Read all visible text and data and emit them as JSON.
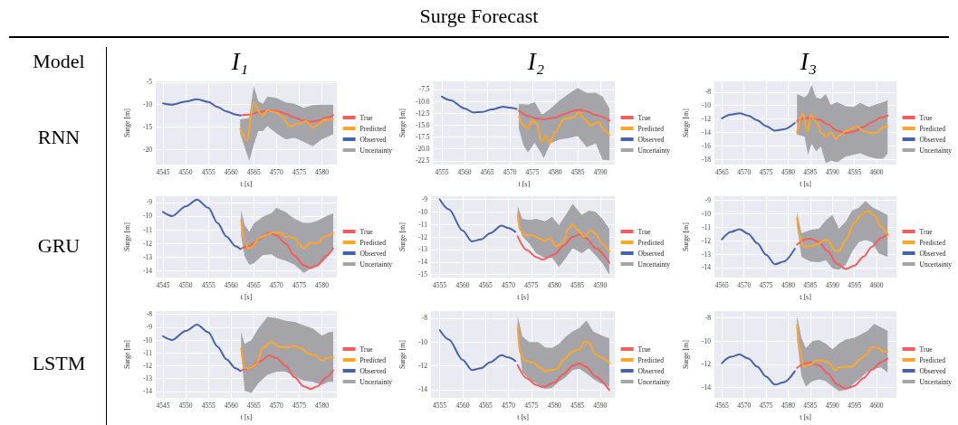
{
  "chart_data": [
    {
      "type": "other",
      "title": "Surge Forecast",
      "annotations": [
        "Model",
        "I₁",
        "I₂",
        "I₃",
        "RNN",
        "GRU",
        "LSTM"
      ]
    },
    {
      "type": "line",
      "xlabel": "t [s]",
      "ylabel": "Surge [m]",
      "grid": true,
      "legend": "right",
      "xlim": [
        4543.4,
        4583.3
      ],
      "ylim": [
        -23.4,
        -4.8
      ],
      "xticks": [
        4545,
        4550,
        4555,
        4560,
        4565,
        4570,
        4575,
        4580
      ],
      "yticks": [
        -20,
        -15,
        -10,
        -5
      ],
      "series": [
        {
          "name": "True",
          "color": "#f55c5c",
          "x": [
            4562,
            4564,
            4566,
            4568.5,
            4570,
            4572,
            4574,
            4576,
            4577.5,
            4579,
            4581,
            4582.5
          ],
          "values": [
            -12.4,
            -12.2,
            -11.7,
            -11.2,
            -11.4,
            -12.0,
            -12.9,
            -13.6,
            -13.8,
            -13.6,
            -12.9,
            -12.35
          ]
        },
        {
          "name": "Predicted",
          "color": "#ffa62b",
          "x": [
            4562,
            4563.5,
            4565,
            4566.5,
            4567,
            4568,
            4570,
            4571,
            4573,
            4575,
            4576.5,
            4578,
            4579,
            4580.5,
            4582.5
          ],
          "values": [
            -15.4,
            -18.0,
            -9.6,
            -12.0,
            -12.5,
            -11.2,
            -11.7,
            -12.6,
            -14.8,
            -14.2,
            -13.7,
            -15.1,
            -14.6,
            -13.4,
            -13.4
          ]
        },
        {
          "name": "Observed",
          "color": "#4563ad",
          "x": [
            4545,
            4547,
            4550,
            4552.5,
            4555,
            4557,
            4559,
            4561,
            4562
          ],
          "values": [
            -9.7,
            -10.0,
            -9.3,
            -8.8,
            -9.4,
            -10.5,
            -11.5,
            -12.2,
            -12.4
          ]
        },
        {
          "name": "Uncertainty",
          "type": "area",
          "color": "#a5a4a9",
          "x": [
            4562,
            4564,
            4565,
            4566,
            4567,
            4568,
            4570,
            4572,
            4574,
            4576,
            4578,
            4580,
            4582.5
          ],
          "values": [
            null,
            null,
            null,
            null,
            null,
            null,
            null,
            null,
            null,
            null,
            null,
            null,
            null
          ],
          "lower": [
            -16.5,
            -22.5,
            -19.0,
            -15.9,
            -15.9,
            -14.8,
            -16.4,
            -17.7,
            -17.4,
            -18.3,
            -19.3,
            -17.7,
            -16.6
          ],
          "upper": [
            -13.3,
            -13.0,
            -5.8,
            -9.2,
            -9.8,
            -8.2,
            -8.5,
            -9.5,
            -9.8,
            -10.7,
            -10.1,
            -10.0,
            -10.0
          ]
        }
      ]
    },
    {
      "type": "line",
      "xlabel": "t [s]",
      "ylabel": "Surge [m]",
      "grid": true,
      "legend": "right",
      "xlim": [
        4553.1,
        4593.2
      ],
      "ylim": [
        -23.3,
        -5.8
      ],
      "xticks": [
        4555,
        4560,
        4565,
        4570,
        4575,
        4580,
        4585,
        4590
      ],
      "yticks": [
        -22.5,
        {
          "value": -20,
          "label": "-20.0"
        },
        -17.5,
        {
          "value": -15,
          "label": "-15.0"
        },
        -12.5,
        {
          "value": -10,
          "label": "-10.0"
        },
        -7.5
      ],
      "series": [
        {
          "name": "True",
          "color": "#f55c5c",
          "x": [
            4572,
            4574,
            4576,
            4577.5,
            4580,
            4582,
            4584,
            4585.5,
            4587,
            4589,
            4592
          ],
          "values": [
            -11.95,
            -13.05,
            -13.6,
            -13.8,
            -13.4,
            -12.7,
            -12.0,
            -11.8,
            -12.1,
            -12.9,
            -14.05
          ]
        },
        {
          "name": "Predicted",
          "color": "#ffa62b",
          "x": [
            4572,
            4573,
            4574,
            4575,
            4576,
            4577,
            4578,
            4578.8,
            4580,
            4582,
            4584,
            4585.3,
            4586.5,
            4588,
            4589.5,
            4591,
            4592
          ],
          "values": [
            -13.2,
            -15.0,
            -15.7,
            -14.0,
            -14.8,
            -18.4,
            -17.3,
            -18.8,
            -16.5,
            -13.7,
            -13.4,
            -12.3,
            -13.8,
            -15.0,
            -14.3,
            -16.1,
            -17.1
          ]
        },
        {
          "name": "Observed",
          "color": "#4563ad",
          "x": [
            4555,
            4557,
            4560,
            4562,
            4564,
            4566,
            4568.5,
            4570,
            4571.5
          ],
          "values": [
            -9.0,
            -9.8,
            -11.5,
            -12.35,
            -12.2,
            -11.7,
            -11.1,
            -11.3,
            -11.6
          ]
        },
        {
          "name": "Uncertainty",
          "type": "area",
          "color": "#a5a4a9",
          "x": [
            4572,
            4573,
            4574,
            4575.5,
            4577,
            4577.5,
            4579,
            4581,
            4583,
            4585,
            4587,
            4589,
            4590.5,
            4592
          ],
          "values": [
            null,
            null,
            null,
            null,
            null,
            null,
            null,
            null,
            null,
            null,
            null,
            null,
            null,
            null
          ],
          "lower": [
            -15.7,
            -19.2,
            -20.7,
            -18.7,
            -21.0,
            -21.9,
            -18.8,
            -18.0,
            -17.7,
            -17.3,
            -19.6,
            -18.8,
            -22.3,
            -22.4
          ],
          "upper": [
            -10.6,
            -10.6,
            -10.7,
            -10.1,
            -12.7,
            -12.6,
            -11.5,
            -9.8,
            -8.4,
            -7.2,
            -8.2,
            -8.2,
            -9.0,
            -11.5
          ]
        }
      ]
    },
    {
      "type": "line",
      "xlabel": "t [s]",
      "ylabel": "Surge [m]",
      "grid": true,
      "legend": "right",
      "xlim": [
        4563.3,
        4604.5
      ],
      "ylim": [
        -18.8,
        -6.4
      ],
      "xticks": [
        4565,
        4570,
        4575,
        4580,
        4585,
        4590,
        4595,
        4600
      ],
      "yticks": [
        -18,
        -16,
        -14,
        -12,
        -10,
        -8
      ],
      "series": [
        {
          "name": "True",
          "color": "#f55c5c",
          "x": [
            4582,
            4584,
            4585,
            4587,
            4589,
            4591,
            4593,
            4595,
            4597,
            4599,
            4601,
            4602.5
          ],
          "values": [
            -12.3,
            -11.9,
            -11.85,
            -12.1,
            -12.8,
            -13.7,
            -14.1,
            -13.85,
            -13.2,
            -12.45,
            -11.8,
            -11.5
          ]
        },
        {
          "name": "Predicted",
          "color": "#ffa62b",
          "x": [
            4582,
            4583.3,
            4584.4,
            4585.2,
            4585.9,
            4586.7,
            4587.4,
            4588.5,
            4589.6,
            4590.8,
            4591.9,
            4593,
            4594.1,
            4595.6,
            4597.1,
            4598.6,
            4600,
            4601.5,
            4602.5
          ],
          "values": [
            -14.0,
            -11.2,
            -13.8,
            -11.3,
            -12.1,
            -12.7,
            -14.0,
            -14.6,
            -14.0,
            -14.9,
            -14.3,
            -13.8,
            -13.5,
            -13.1,
            -13.8,
            -14.05,
            -14.05,
            -13.2,
            -13.1
          ]
        },
        {
          "name": "Observed",
          "color": "#4563ad",
          "x": [
            4565,
            4567,
            4569,
            4571,
            4573,
            4575,
            4577,
            4579,
            4581.5
          ],
          "values": [
            -11.9,
            -11.35,
            -11.15,
            -11.5,
            -12.2,
            -13.05,
            -13.75,
            -13.55,
            -12.6
          ]
        },
        {
          "name": "Uncertainty",
          "type": "area",
          "color": "#a5a4a9",
          "x": [
            4582,
            4583.7,
            4584.5,
            4585.3,
            4586.3,
            4587.4,
            4588.5,
            4589.6,
            4591.1,
            4593,
            4594.8,
            4596.3,
            4598.2,
            4600,
            4601.5,
            4602.5
          ],
          "values": [
            null,
            null,
            null,
            null,
            null,
            null,
            null,
            null,
            null,
            null,
            null,
            null,
            null,
            null,
            null,
            null
          ],
          "lower": [
            -14.3,
            -14.6,
            -17.3,
            -15.7,
            -16.8,
            -16.1,
            -18.6,
            -18.2,
            -18.4,
            -17.6,
            -17.3,
            -17.1,
            -17.6,
            -17.9,
            -17.9,
            -17.1
          ],
          "upper": [
            -8.3,
            -8.8,
            -8.3,
            -6.9,
            -8.8,
            -9.0,
            -8.3,
            -9.9,
            -9.5,
            -10.1,
            -10.2,
            -9.6,
            -10.2,
            -9.8,
            -9.5,
            -9.2
          ]
        }
      ]
    },
    {
      "type": "line",
      "xlabel": "t [s]",
      "ylabel": "Surge [m]",
      "grid": true,
      "legend": "right",
      "xlim": [
        4543.4,
        4583.3
      ],
      "ylim": [
        -14.5,
        -8.55
      ],
      "xticks": [
        4545,
        4550,
        4555,
        4560,
        4565,
        4570,
        4575,
        4580
      ],
      "yticks": [
        -14,
        -13,
        -12,
        -11,
        -10,
        -9
      ],
      "series": [
        {
          "name": "True",
          "color": "#f55c5c",
          "x": [
            4562,
            4564,
            4566,
            4568.5,
            4570,
            4572,
            4574,
            4576,
            4577.5,
            4579,
            4581,
            4582.5
          ],
          "values": [
            -12.4,
            -12.2,
            -11.7,
            -11.2,
            -11.4,
            -12.0,
            -12.9,
            -13.6,
            -13.8,
            -13.6,
            -12.9,
            -12.35
          ]
        },
        {
          "name": "Predicted",
          "color": "#ffa62b",
          "x": [
            4562.2,
            4563,
            4563.8,
            4564.5,
            4566,
            4568,
            4569,
            4571,
            4572,
            4574,
            4575,
            4576,
            4577.5,
            4579,
            4580.5,
            4582.5
          ],
          "values": [
            -10.3,
            -11.85,
            -12.35,
            -12.3,
            -11.65,
            -11.35,
            -11.2,
            -11.2,
            -11.5,
            -11.6,
            -12.05,
            -12.35,
            -11.95,
            -12.0,
            -11.5,
            -11.25
          ]
        },
        {
          "name": "Observed",
          "color": "#4563ad",
          "x": [
            4545,
            4547,
            4550,
            4552.5,
            4555,
            4557,
            4559,
            4561,
            4562
          ],
          "values": [
            -9.7,
            -10.0,
            -9.3,
            -8.8,
            -9.4,
            -10.5,
            -11.5,
            -12.2,
            -12.4
          ]
        },
        {
          "name": "Uncertainty",
          "type": "area",
          "color": "#a5a4a9",
          "x": [
            4562.2,
            4563,
            4564,
            4565,
            4567,
            4569,
            4570,
            4572,
            4574,
            4576,
            4577.5,
            4579,
            4581,
            4582.5
          ],
          "values": [
            null,
            null,
            null,
            null,
            null,
            null,
            null,
            null,
            null,
            null,
            null,
            null,
            null,
            null
          ],
          "lower": [
            -11.45,
            -12.95,
            -13.55,
            -13.45,
            -12.85,
            -12.8,
            -13.05,
            -13.25,
            -13.55,
            -14.15,
            -13.85,
            -13.7,
            -13.1,
            -12.35
          ],
          "upper": [
            -9.5,
            -10.65,
            -11.15,
            -10.55,
            -10.05,
            -9.75,
            -9.4,
            -9.7,
            -10.2,
            -10.5,
            -10.5,
            -10.35,
            -10.0,
            -9.8
          ]
        }
      ]
    },
    {
      "type": "line",
      "xlabel": "t [s]",
      "ylabel": "Surge [m]",
      "grid": true,
      "legend": "right",
      "xlim": [
        4553.1,
        4593.2
      ],
      "ylim": [
        -15.25,
        -8.75
      ],
      "xticks": [
        4555,
        4560,
        4565,
        4570,
        4575,
        4580,
        4585,
        4590
      ],
      "yticks": [
        -15,
        -14,
        -13,
        -12,
        -11,
        -10,
        -9
      ],
      "series": [
        {
          "name": "True",
          "color": "#f55c5c",
          "x": [
            4572,
            4574,
            4576,
            4577.5,
            4580,
            4582,
            4584,
            4585.5,
            4587,
            4589,
            4592
          ],
          "values": [
            -11.95,
            -13.05,
            -13.6,
            -13.8,
            -13.4,
            -12.7,
            -12.0,
            -11.8,
            -12.1,
            -12.9,
            -14.05
          ]
        },
        {
          "name": "Predicted",
          "color": "#ffa62b",
          "x": [
            4572,
            4572.5,
            4573.5,
            4575,
            4577,
            4578,
            4579,
            4580.5,
            4582,
            4583,
            4584,
            4585,
            4586.5,
            4588,
            4589,
            4590.5,
            4592
          ],
          "values": [
            -10.2,
            -11.45,
            -11.85,
            -11.85,
            -12.15,
            -12.3,
            -12.1,
            -12.75,
            -12.4,
            -11.35,
            -11.0,
            -11.4,
            -12.0,
            -11.45,
            -11.75,
            -12.55,
            -13.15
          ]
        },
        {
          "name": "Observed",
          "color": "#4563ad",
          "x": [
            4555,
            4557,
            4560,
            4562,
            4564,
            4566,
            4568.5,
            4570,
            4571.5
          ],
          "values": [
            -9.0,
            -9.8,
            -11.5,
            -12.35,
            -12.2,
            -11.7,
            -11.1,
            -11.3,
            -11.6
          ]
        },
        {
          "name": "Uncertainty",
          "type": "area",
          "color": "#a5a4a9",
          "x": [
            4572,
            4573,
            4574.5,
            4576,
            4578,
            4579.5,
            4581,
            4582.5,
            4584,
            4586,
            4587.5,
            4589,
            4590.5,
            4592
          ],
          "values": [
            null,
            null,
            null,
            null,
            null,
            null,
            null,
            null,
            null,
            null,
            null,
            null,
            null,
            null
          ],
          "lower": [
            -10.8,
            -11.95,
            -12.5,
            -13.3,
            -13.7,
            -13.65,
            -14.4,
            -13.7,
            -12.9,
            -13.3,
            -12.9,
            -13.45,
            -14.1,
            -15.0
          ],
          "upper": [
            -9.55,
            -10.55,
            -10.65,
            -10.55,
            -10.75,
            -10.4,
            -11.05,
            -10.25,
            -9.35,
            -10.25,
            -9.9,
            -10.0,
            -10.55,
            -11.35
          ]
        }
      ]
    },
    {
      "type": "line",
      "xlabel": "t [s]",
      "ylabel": "Surge [m]",
      "grid": true,
      "legend": "right",
      "xlim": [
        4563.3,
        4604.5
      ],
      "ylim": [
        -14.75,
        -8.7
      ],
      "xticks": [
        4565,
        4570,
        4575,
        4580,
        4585,
        4590,
        4595,
        4600
      ],
      "yticks": [
        -14,
        -13,
        -12,
        -11,
        -10,
        -9
      ],
      "series": [
        {
          "name": "True",
          "color": "#f55c5c",
          "x": [
            4582,
            4584,
            4585,
            4587,
            4589,
            4591,
            4593,
            4595,
            4597,
            4599,
            4601,
            4602.5
          ],
          "values": [
            -12.3,
            -11.9,
            -11.85,
            -12.1,
            -12.8,
            -13.7,
            -14.1,
            -13.85,
            -13.2,
            -12.45,
            -11.8,
            -11.5
          ]
        },
        {
          "name": "Predicted",
          "color": "#ffa62b",
          "x": [
            4582,
            4582.5,
            4583.5,
            4585,
            4586.5,
            4588,
            4589,
            4590.5,
            4591.5,
            4593,
            4595,
            4596.5,
            4598,
            4599.5,
            4601,
            4602.5
          ],
          "values": [
            -10.3,
            -11.6,
            -12.45,
            -12.4,
            -12.3,
            -11.95,
            -11.95,
            -12.7,
            -12.8,
            -11.95,
            -10.7,
            -10.1,
            -9.8,
            -10.1,
            -10.95,
            -11.6
          ]
        },
        {
          "name": "Observed",
          "color": "#4563ad",
          "x": [
            4565,
            4567,
            4569,
            4571,
            4573,
            4575,
            4577,
            4579,
            4581.5
          ],
          "values": [
            -11.9,
            -11.35,
            -11.15,
            -11.5,
            -12.2,
            -13.05,
            -13.75,
            -13.55,
            -12.6
          ]
        },
        {
          "name": "Uncertainty",
          "type": "area",
          "color": "#a5a4a9",
          "x": [
            4582,
            4583,
            4585,
            4587,
            4588.5,
            4590,
            4591.5,
            4593,
            4594.5,
            4596,
            4597.5,
            4599,
            4600.5,
            4602.5
          ],
          "values": [
            null,
            null,
            null,
            null,
            null,
            null,
            null,
            null,
            null,
            null,
            null,
            null,
            null,
            null
          ],
          "lower": [
            -10.85,
            -13.2,
            -13.55,
            -13.6,
            -13.45,
            -14.05,
            -14.15,
            -13.8,
            -12.8,
            -12.1,
            -11.95,
            -12.1,
            -12.95,
            -13.2
          ],
          "upper": [
            -9.85,
            -11.45,
            -11.2,
            -11.1,
            -10.5,
            -10.1,
            -11.1,
            -10.6,
            -9.75,
            -9.55,
            -9.05,
            -9.5,
            -9.75,
            -10.1
          ]
        }
      ]
    },
    {
      "type": "line",
      "xlabel": "t [s]",
      "ylabel": "Surge [m]",
      "grid": true,
      "legend": "right",
      "xlim": [
        4543.4,
        4583.3
      ],
      "ylim": [
        -14.5,
        -7.75
      ],
      "xticks": [
        4545,
        4550,
        4555,
        4560,
        4565,
        4570,
        4575,
        4580
      ],
      "yticks": [
        -14,
        -13,
        -12,
        -11,
        -10,
        -9,
        -8
      ],
      "series": [
        {
          "name": "True",
          "color": "#f55c5c",
          "x": [
            4562,
            4564,
            4566,
            4568.5,
            4570,
            4572,
            4574,
            4576,
            4577.5,
            4579,
            4581,
            4582.5
          ],
          "values": [
            -12.4,
            -12.2,
            -11.7,
            -11.2,
            -11.4,
            -12.0,
            -12.9,
            -13.6,
            -13.8,
            -13.6,
            -12.9,
            -12.35
          ]
        },
        {
          "name": "Predicted",
          "color": "#ffa62b",
          "x": [
            4562.2,
            4563,
            4564,
            4565.5,
            4567,
            4569,
            4570.5,
            4572.5,
            4574,
            4575.5,
            4577,
            4578.5,
            4580,
            4581.5,
            4582.5
          ],
          "values": [
            -10.65,
            -12.2,
            -12.2,
            -11.9,
            -10.6,
            -10.1,
            -10.55,
            -10.55,
            -10.45,
            -10.65,
            -11.05,
            -11.15,
            -11.6,
            -11.35,
            -11.35
          ]
        },
        {
          "name": "Observed",
          "color": "#4563ad",
          "x": [
            4545,
            4547,
            4550,
            4552.5,
            4555,
            4557,
            4559,
            4561,
            4562
          ],
          "values": [
            -9.7,
            -10.0,
            -9.3,
            -8.8,
            -9.4,
            -10.5,
            -11.5,
            -12.2,
            -12.4
          ]
        },
        {
          "name": "Uncertainty",
          "type": "area",
          "color": "#a5a4a9",
          "x": [
            4562.2,
            4563,
            4564.5,
            4566,
            4568,
            4570,
            4572,
            4574,
            4576,
            4578,
            4580,
            4581.5,
            4582.5
          ],
          "values": [
            null,
            null,
            null,
            null,
            null,
            null,
            null,
            null,
            null,
            null,
            null,
            null,
            null
          ],
          "lower": [
            -10.9,
            -13.95,
            -14.1,
            -13.35,
            -12.7,
            -12.45,
            -12.45,
            -12.8,
            -13.15,
            -13.25,
            -13.5,
            -13.25,
            -13.25
          ],
          "upper": [
            -9.4,
            -10.3,
            -10.0,
            -9.1,
            -8.2,
            -8.3,
            -8.5,
            -8.6,
            -8.85,
            -9.1,
            -9.65,
            -9.4,
            -9.35
          ]
        }
      ]
    },
    {
      "type": "line",
      "xlabel": "t [s]",
      "ylabel": "Surge [m]",
      "grid": true,
      "legend": "right",
      "xlim": [
        4553.1,
        4593.2
      ],
      "ylim": [
        -14.7,
        -7.4
      ],
      "xticks": [
        4555,
        4560,
        4565,
        4570,
        4575,
        4580,
        4585,
        4590
      ],
      "yticks": [
        -14,
        -12,
        -10,
        -8
      ],
      "series": [
        {
          "name": "True",
          "color": "#f55c5c",
          "x": [
            4572,
            4574,
            4576,
            4577.5,
            4580,
            4582,
            4584,
            4585.5,
            4587,
            4589,
            4592
          ],
          "values": [
            -11.95,
            -13.05,
            -13.6,
            -13.8,
            -13.4,
            -12.7,
            -12.0,
            -11.8,
            -12.1,
            -12.9,
            -14.05
          ]
        },
        {
          "name": "Predicted",
          "color": "#ffa62b",
          "x": [
            4572,
            4572.5,
            4573.5,
            4575.5,
            4577,
            4578,
            4579.5,
            4580.5,
            4582,
            4584,
            4585.5,
            4586.5,
            4587.5,
            4589,
            4590.5,
            4592
          ],
          "values": [
            -8.7,
            -10.9,
            -11.55,
            -11.75,
            -12.2,
            -12.45,
            -12.35,
            -12.3,
            -11.5,
            -10.8,
            -10.6,
            -10.0,
            -10.0,
            -11.05,
            -11.35,
            -11.75
          ]
        },
        {
          "name": "Observed",
          "color": "#4563ad",
          "x": [
            4555,
            4557,
            4560,
            4562,
            4564,
            4566,
            4568.5,
            4570,
            4571.5
          ],
          "values": [
            -9.0,
            -9.8,
            -11.5,
            -12.35,
            -12.2,
            -11.7,
            -11.1,
            -11.3,
            -11.6
          ]
        },
        {
          "name": "Uncertainty",
          "type": "area",
          "color": "#a5a4a9",
          "x": [
            4572,
            4573,
            4574.5,
            4576.5,
            4578,
            4579.5,
            4581,
            4582.5,
            4584,
            4585.5,
            4587,
            4588.5,
            4590,
            4592
          ],
          "values": [
            null,
            null,
            null,
            null,
            null,
            null,
            null,
            null,
            null,
            null,
            null,
            null,
            null,
            null
          ],
          "lower": [
            -9.25,
            -12.5,
            -13.15,
            -13.55,
            -13.95,
            -13.85,
            -13.35,
            -12.95,
            -12.35,
            -12.25,
            -12.65,
            -13.1,
            -13.45,
            -13.75
          ],
          "upper": [
            -7.8,
            -9.5,
            -10.0,
            -10.0,
            -10.45,
            -10.5,
            -10.15,
            -9.55,
            -9.1,
            -8.8,
            -8.2,
            -9.1,
            -9.4,
            -9.7
          ]
        }
      ]
    },
    {
      "type": "line",
      "xlabel": "t [s]",
      "ylabel": "Surge [m]",
      "grid": true,
      "legend": "right",
      "xlim": [
        4563.3,
        4604.5
      ],
      "ylim": [
        -14.9,
        -7.4
      ],
      "xticks": [
        4565,
        4570,
        4575,
        4580,
        4585,
        4590,
        4595,
        4600
      ],
      "yticks": [
        -14,
        -12,
        -10,
        -8
      ],
      "series": [
        {
          "name": "True",
          "color": "#f55c5c",
          "x": [
            4582,
            4584,
            4585,
            4587,
            4589,
            4591,
            4593,
            4595,
            4597,
            4599,
            4601,
            4602.5
          ],
          "values": [
            -12.3,
            -11.9,
            -11.85,
            -12.1,
            -12.8,
            -13.7,
            -14.1,
            -13.85,
            -13.2,
            -12.45,
            -11.8,
            -11.5
          ]
        },
        {
          "name": "Predicted",
          "color": "#ffa62b",
          "x": [
            4582,
            4582.5,
            4583.5,
            4585,
            4586.5,
            4588,
            4589.5,
            4590.5,
            4591.5,
            4593,
            4594.5,
            4596,
            4597.5,
            4599,
            4600.5,
            4601.5,
            4602.5
          ],
          "values": [
            -8.6,
            -10.6,
            -12.2,
            -12.0,
            -11.65,
            -11.7,
            -11.95,
            -12.5,
            -12.25,
            -12.2,
            -12.2,
            -11.65,
            -11.2,
            -10.5,
            -10.6,
            -10.9,
            -10.9
          ]
        },
        {
          "name": "Observed",
          "color": "#4563ad",
          "x": [
            4565,
            4567,
            4569,
            4571,
            4573,
            4575,
            4577,
            4579,
            4581.5
          ],
          "values": [
            -11.9,
            -11.35,
            -11.15,
            -11.5,
            -12.2,
            -13.05,
            -13.75,
            -13.55,
            -12.6
          ]
        },
        {
          "name": "Uncertainty",
          "type": "area",
          "color": "#a5a4a9",
          "x": [
            4582,
            4583,
            4584,
            4585.5,
            4587,
            4588.5,
            4590,
            4591.5,
            4593,
            4595,
            4596.5,
            4598,
            4599.5,
            4601,
            4602.5
          ],
          "values": [
            null,
            null,
            null,
            null,
            null,
            null,
            null,
            null,
            null,
            null,
            null,
            null,
            null,
            null,
            null
          ],
          "lower": [
            -9.85,
            -13.0,
            -13.9,
            -13.45,
            -13.3,
            -13.45,
            -13.9,
            -14.3,
            -14.2,
            -13.6,
            -13.15,
            -12.6,
            -12.4,
            -12.25,
            -12.7
          ],
          "upper": [
            -7.8,
            -9.7,
            -10.6,
            -10.0,
            -9.9,
            -10.2,
            -10.7,
            -10.2,
            -9.85,
            -9.7,
            -9.4,
            -9.1,
            -8.5,
            -8.8,
            -9.1
          ]
        }
      ]
    }
  ]
}
